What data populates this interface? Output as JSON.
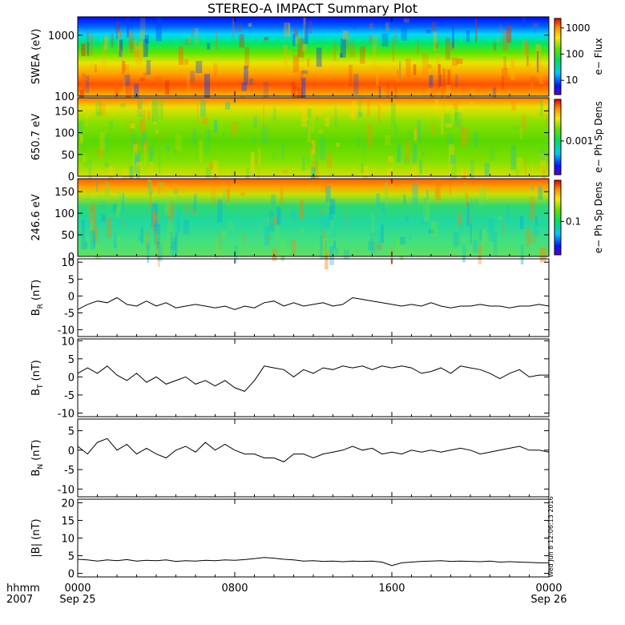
{
  "chart_data": {
    "type": "heatmap",
    "title": "STEREO-A IMPACT Summary Plot",
    "stamp": "Wed Jun  8 12:06:13 2016",
    "x_axis": {
      "unit_label": "hhmm",
      "year_label": "2007",
      "ticks": [
        {
          "hhmm": "0000",
          "date": "Sep 25"
        },
        {
          "hhmm": "0800",
          "date": ""
        },
        {
          "hhmm": "1600",
          "date": ""
        },
        {
          "hhmm": "0000",
          "date": "Sep 26"
        }
      ]
    },
    "panels": [
      {
        "id": "swea",
        "kind": "spectrogram",
        "ylabel": "SWEA (eV)",
        "yscale": "log",
        "ylim": [
          100,
          2000
        ],
        "yticks": [
          "100",
          "1000"
        ],
        "colorbar": {
          "label": "e− Flux",
          "scale": "log",
          "ticks": [
            "10",
            "100",
            "1000"
          ]
        }
      },
      {
        "id": "pad650",
        "kind": "spectrogram",
        "ylabel": "650.7 eV",
        "ylim": [
          0,
          180
        ],
        "yticks": [
          "0",
          "50",
          "100",
          "150"
        ],
        "colorbar": {
          "label": "e− Ph Sp Dens",
          "scale": "log",
          "ticks": [
            "0.001"
          ]
        }
      },
      {
        "id": "pad246",
        "kind": "spectrogram",
        "ylabel": "246.6 eV",
        "ylim": [
          0,
          180
        ],
        "yticks": [
          "0",
          "50",
          "100",
          "150"
        ],
        "colorbar": {
          "label": "e− Ph Sp Dens",
          "scale": "log",
          "ticks": [
            "0.1"
          ]
        }
      },
      {
        "id": "br",
        "kind": "line",
        "ylabel": "B",
        "ylabel_sub": "R",
        "ylabel_unit": "(nT)",
        "ylim": [
          -12,
          11
        ],
        "yticks": [
          "-10",
          "-5",
          "0",
          "5",
          "10"
        ],
        "series": [
          {
            "x": [
              0,
              0.5,
              1,
              1.5,
              2,
              2.5,
              3,
              3.5,
              4,
              4.5,
              5,
              5.5,
              6,
              6.5,
              7,
              7.5,
              8,
              8.5,
              9,
              9.5,
              10,
              10.5,
              11,
              11.5,
              12,
              12.5,
              13,
              13.5,
              14,
              14.5,
              15,
              15.5,
              16,
              16.5,
              17,
              17.5,
              18,
              18.5,
              19,
              19.5,
              20,
              20.5,
              21,
              21.5,
              22,
              22.5,
              23,
              23.5,
              24
            ],
            "y": [
              -4,
              -2.5,
              -1.5,
              -2,
              -0.5,
              -2.5,
              -3,
              -1.5,
              -3,
              -2,
              -3.5,
              -3,
              -2.5,
              -3,
              -3.5,
              -3,
              -4,
              -3,
              -3.5,
              -2,
              -1.5,
              -3,
              -2,
              -3,
              -2.5,
              -2,
              -3,
              -2.5,
              -0.5,
              -1,
              -1.5,
              -2,
              -2.5,
              -3,
              -2.5,
              -3,
              -2,
              -3,
              -3.5,
              -3,
              -3,
              -2.5,
              -3,
              -3,
              -3.5,
              -3,
              -3,
              -2.5,
              -3
            ]
          }
        ]
      },
      {
        "id": "bt",
        "kind": "line",
        "ylabel": "B",
        "ylabel_sub": "T",
        "ylabel_unit": "(nT)",
        "ylim": [
          -11,
          10.5
        ],
        "yticks": [
          "-10",
          "-5",
          "0",
          "5",
          "10"
        ],
        "series": [
          {
            "x": [
              0,
              0.5,
              1,
              1.5,
              2,
              2.5,
              3,
              3.5,
              4,
              4.5,
              5,
              5.5,
              6,
              6.5,
              7,
              7.5,
              8,
              8.5,
              9,
              9.5,
              10,
              10.5,
              11,
              11.5,
              12,
              12.5,
              13,
              13.5,
              14,
              14.5,
              15,
              15.5,
              16,
              16.5,
              17,
              17.5,
              18,
              18.5,
              19,
              19.5,
              20,
              20.5,
              21,
              21.5,
              22,
              22.5,
              23,
              23.5,
              24
            ],
            "y": [
              1,
              2.5,
              1,
              3,
              0.5,
              -1,
              1,
              -1.5,
              0,
              -2,
              -1,
              0,
              -2,
              -1,
              -2.5,
              -1,
              -3,
              -4,
              -1,
              3,
              2.5,
              2,
              0,
              2,
              1,
              2.5,
              2,
              3,
              2.5,
              3,
              2,
              3,
              2.5,
              3,
              2.5,
              1,
              1.5,
              2.5,
              1,
              3,
              2.5,
              2,
              1,
              -0.5,
              1,
              2,
              0,
              0.5,
              0.5
            ]
          }
        ]
      },
      {
        "id": "bn",
        "kind": "line",
        "ylabel": "B",
        "ylabel_sub": "N",
        "ylabel_unit": "(nT)",
        "ylim": [
          -12,
          8
        ],
        "yticks": [
          "-10",
          "-5",
          "0",
          "5"
        ],
        "series": [
          {
            "x": [
              0,
              0.5,
              1,
              1.5,
              2,
              2.5,
              3,
              3.5,
              4,
              4.5,
              5,
              5.5,
              6,
              6.5,
              7,
              7.5,
              8,
              8.5,
              9,
              9.5,
              10,
              10.5,
              11,
              11.5,
              12,
              12.5,
              13,
              13.5,
              14,
              14.5,
              15,
              15.5,
              16,
              16.5,
              17,
              17.5,
              18,
              18.5,
              19,
              19.5,
              20,
              20.5,
              21,
              21.5,
              22,
              22.5,
              23,
              23.5,
              24
            ],
            "y": [
              1,
              -1,
              2,
              3,
              0,
              1.5,
              -1,
              0.5,
              -1,
              -2,
              0,
              1,
              -0.5,
              2,
              0,
              1.5,
              0,
              -1,
              -1,
              -2,
              -2,
              -3,
              -1,
              -1,
              -2,
              -1,
              -0.5,
              0,
              1,
              0,
              0.5,
              -1,
              -0.5,
              -1,
              0,
              -0.5,
              0,
              -0.5,
              0,
              0.5,
              0,
              -1,
              -0.5,
              0,
              0.5,
              1,
              0,
              0,
              -0.5
            ]
          }
        ]
      },
      {
        "id": "bmag",
        "kind": "line",
        "ylabel": "|B| (nT)",
        "ylim": [
          -1,
          21
        ],
        "yticks": [
          "0",
          "5",
          "10",
          "15",
          "20"
        ],
        "series": [
          {
            "x": [
              0,
              0.5,
              1,
              1.5,
              2,
              2.5,
              3,
              3.5,
              4,
              4.5,
              5,
              5.5,
              6,
              6.5,
              7,
              7.5,
              8,
              8.5,
              9,
              9.5,
              10,
              10.5,
              11,
              11.5,
              12,
              12.5,
              13,
              13.5,
              14,
              14.5,
              15,
              15.5,
              16,
              16.5,
              17,
              17.5,
              18,
              18.5,
              19,
              19.5,
              20,
              20.5,
              21,
              21.5,
              22,
              22.5,
              23,
              23.5,
              24
            ],
            "y": [
              4,
              3.8,
              3.5,
              3.8,
              3.6,
              3.9,
              3.5,
              3.7,
              3.6,
              3.8,
              3.4,
              3.6,
              3.5,
              3.7,
              3.6,
              3.8,
              3.7,
              3.9,
              4.2,
              4.5,
              4.3,
              4,
              3.8,
              3.5,
              3.6,
              3.4,
              3.5,
              3.3,
              3.5,
              3.4,
              3.5,
              3.2,
              2.2,
              3,
              3.2,
              3.4,
              3.5,
              3.6,
              3.4,
              3.5,
              3.4,
              3.3,
              3.5,
              3.2,
              3.3,
              3.2,
              3.1,
              3,
              3
            ]
          }
        ]
      }
    ]
  }
}
